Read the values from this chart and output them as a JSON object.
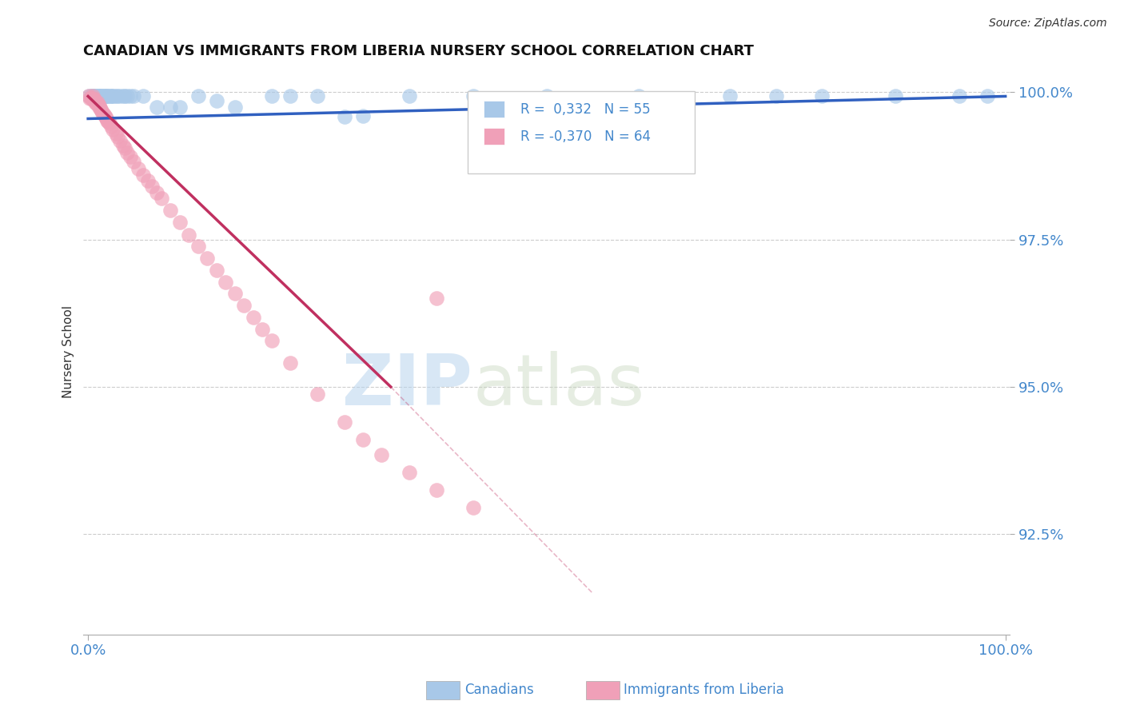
{
  "title": "CANADIAN VS IMMIGRANTS FROM LIBERIA NURSERY SCHOOL CORRELATION CHART",
  "source": "Source: ZipAtlas.com",
  "ylabel": "Nursery School",
  "ytick_labels": [
    "100.0%",
    "97.5%",
    "95.0%",
    "92.5%"
  ],
  "ytick_values": [
    1.0,
    0.975,
    0.95,
    0.925
  ],
  "xlim": [
    0.0,
    1.0
  ],
  "ylim": [
    0.908,
    1.004
  ],
  "legend_text_1": "R =  0,332   N = 55",
  "legend_text_2": "R = -0,370   N = 64",
  "canadian_color": "#a8c8e8",
  "liberia_color": "#f0a0b8",
  "canadian_line_color": "#3060c0",
  "liberia_line_color": "#c03060",
  "background_color": "#ffffff",
  "watermark": "ZIPatlas",
  "can_line_x0": 0.0,
  "can_line_y0": 0.9955,
  "can_line_x1": 1.0,
  "can_line_y1": 0.9993,
  "lib_line_solid_x0": 0.0,
  "lib_line_solid_y0": 0.9993,
  "lib_line_solid_x1": 0.33,
  "lib_line_solid_y1": 0.95,
  "lib_line_dash_x0": 0.33,
  "lib_line_dash_y0": 0.95,
  "lib_line_dash_x1": 0.55,
  "lib_line_dash_y1": 0.915,
  "can_x": [
    0.001,
    0.003,
    0.004,
    0.005,
    0.006,
    0.007,
    0.008,
    0.009,
    0.01,
    0.011,
    0.012,
    0.013,
    0.014,
    0.015,
    0.016,
    0.017,
    0.018,
    0.019,
    0.02,
    0.021,
    0.022,
    0.024,
    0.025,
    0.026,
    0.028,
    0.03,
    0.032,
    0.035,
    0.038,
    0.04,
    0.043,
    0.046,
    0.05,
    0.06,
    0.075,
    0.09,
    0.1,
    0.12,
    0.14,
    0.16,
    0.2,
    0.22,
    0.25,
    0.28,
    0.3,
    0.35,
    0.42,
    0.5,
    0.6,
    0.7,
    0.75,
    0.8,
    0.88,
    0.95,
    0.98
  ],
  "can_y": [
    0.9993,
    0.9993,
    0.9993,
    0.9993,
    0.9993,
    0.9993,
    0.9993,
    0.9993,
    0.9993,
    0.9993,
    0.9993,
    0.9993,
    0.9993,
    0.9993,
    0.9993,
    0.9993,
    0.9993,
    0.9993,
    0.9993,
    0.9993,
    0.9993,
    0.9993,
    0.9993,
    0.9993,
    0.9993,
    0.9993,
    0.9993,
    0.9993,
    0.9993,
    0.9993,
    0.9993,
    0.9993,
    0.9993,
    0.9993,
    0.9975,
    0.9975,
    0.9975,
    0.9993,
    0.9985,
    0.9975,
    0.9993,
    0.9993,
    0.9993,
    0.9958,
    0.996,
    0.9993,
    0.9993,
    0.9993,
    0.9993,
    0.9993,
    0.9993,
    0.9993,
    0.9993,
    0.9993,
    0.9993
  ],
  "lib_x": [
    0.001,
    0.002,
    0.003,
    0.004,
    0.005,
    0.005,
    0.006,
    0.007,
    0.007,
    0.008,
    0.009,
    0.01,
    0.01,
    0.011,
    0.012,
    0.012,
    0.013,
    0.014,
    0.015,
    0.016,
    0.017,
    0.018,
    0.019,
    0.02,
    0.021,
    0.022,
    0.023,
    0.025,
    0.027,
    0.03,
    0.032,
    0.035,
    0.038,
    0.04,
    0.043,
    0.046,
    0.05,
    0.055,
    0.06,
    0.065,
    0.07,
    0.075,
    0.08,
    0.09,
    0.1,
    0.11,
    0.12,
    0.13,
    0.14,
    0.15,
    0.16,
    0.17,
    0.18,
    0.19,
    0.2,
    0.22,
    0.25,
    0.28,
    0.3,
    0.32,
    0.35,
    0.38,
    0.42,
    0.38
  ],
  "lib_y": [
    0.9993,
    0.999,
    0.999,
    0.999,
    0.999,
    0.9993,
    0.9988,
    0.9985,
    0.9988,
    0.9983,
    0.9982,
    0.998,
    0.9983,
    0.9978,
    0.9978,
    0.9975,
    0.9973,
    0.997,
    0.9968,
    0.9965,
    0.9962,
    0.996,
    0.9958,
    0.9955,
    0.9952,
    0.995,
    0.9947,
    0.9942,
    0.9937,
    0.993,
    0.9925,
    0.9918,
    0.991,
    0.9905,
    0.9898,
    0.989,
    0.9882,
    0.987,
    0.986,
    0.985,
    0.984,
    0.983,
    0.982,
    0.98,
    0.978,
    0.9758,
    0.9738,
    0.9718,
    0.9698,
    0.9678,
    0.9658,
    0.9638,
    0.9618,
    0.9598,
    0.9578,
    0.954,
    0.9488,
    0.944,
    0.941,
    0.9385,
    0.9355,
    0.9325,
    0.9295,
    0.965
  ]
}
